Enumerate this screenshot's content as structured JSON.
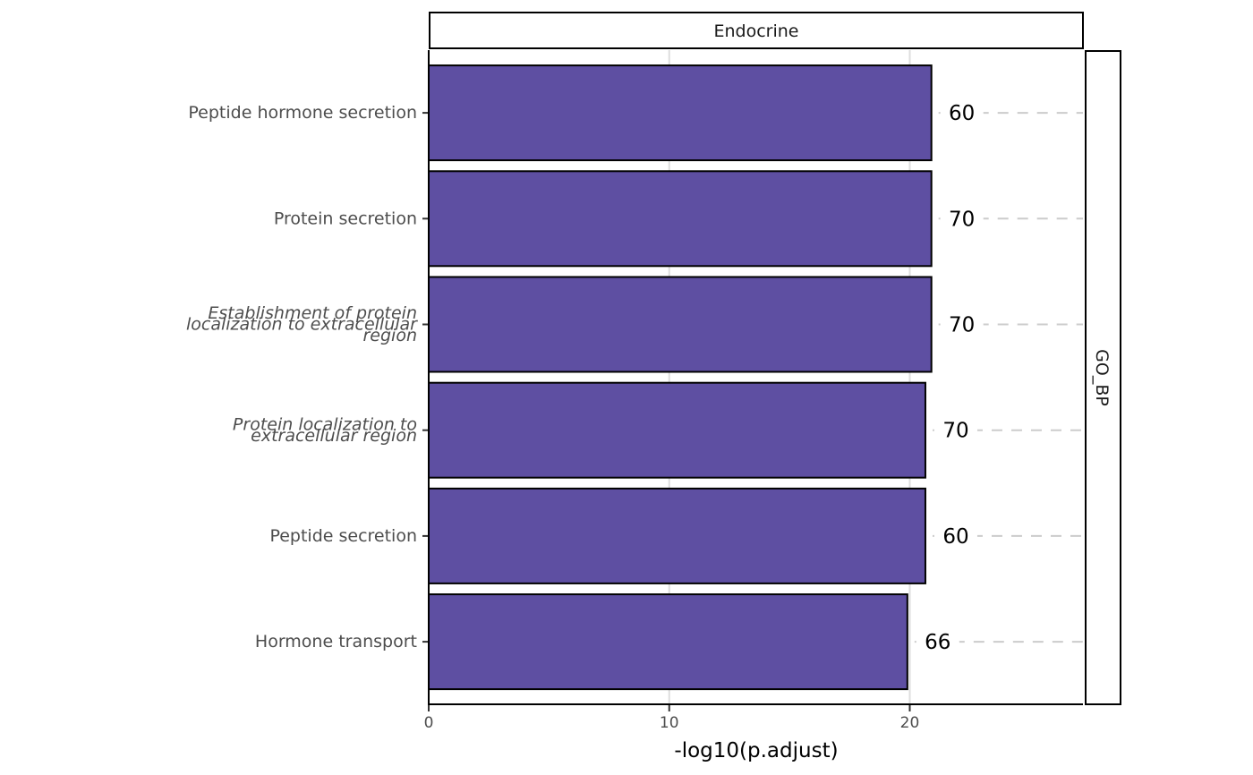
{
  "chart_data": {
    "type": "bar",
    "orientation": "horizontal",
    "facet_top": "Endocrine",
    "facet_right": "GO_BP",
    "xlabel": "-log10(p.adjust)",
    "ylabel": "",
    "xlim": [
      0,
      27.2
    ],
    "x_ticks": [
      0,
      10,
      20
    ],
    "grid": true,
    "colors": {
      "bar": "#5E4FA2",
      "bar_border": "#000000",
      "count_guide": "#cccccc",
      "grid": "#dedede"
    },
    "categories": [
      {
        "lines": [
          "Peptide hormone secretion"
        ],
        "italic": false,
        "value": 20.9,
        "count": "60"
      },
      {
        "lines": [
          "Protein secretion"
        ],
        "italic": false,
        "value": 20.9,
        "count": "70"
      },
      {
        "lines": [
          "Establishment of protein",
          "localization to extracellular",
          "region"
        ],
        "italic": true,
        "value": 20.9,
        "count": "70"
      },
      {
        "lines": [
          "Protein localization to",
          "extracellular region"
        ],
        "italic": true,
        "value": 20.65,
        "count": "70"
      },
      {
        "lines": [
          "Peptide secretion"
        ],
        "italic": false,
        "value": 20.65,
        "count": "60"
      },
      {
        "lines": [
          "Hormone transport"
        ],
        "italic": false,
        "value": 19.9,
        "count": "66"
      }
    ]
  }
}
